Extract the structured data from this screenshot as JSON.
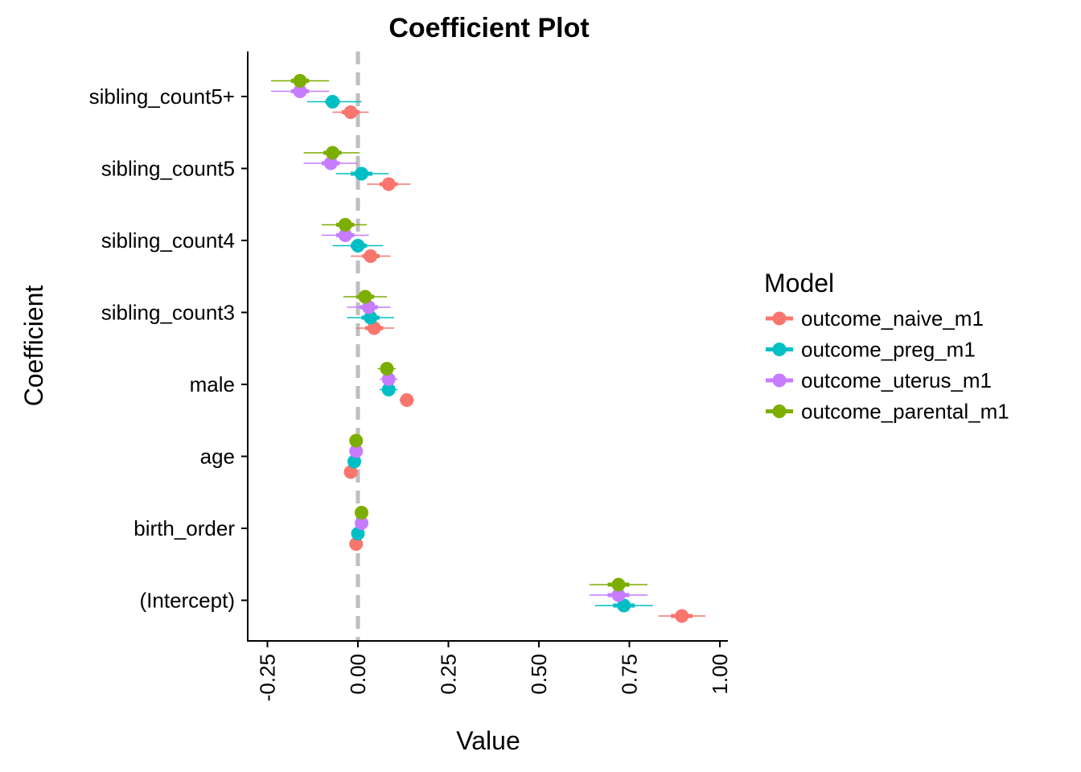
{
  "chart_data": {
    "type": "scatter",
    "title": "Coefficient Plot",
    "xlabel": "Value",
    "ylabel": "Coefficient",
    "xlim": [
      -0.3,
      1.02
    ],
    "xticks": [
      -0.25,
      0.0,
      0.25,
      0.5,
      0.75,
      1.0
    ],
    "xtick_labels": [
      "-0.25",
      "0.00",
      "0.25",
      "0.50",
      "0.75",
      "1.00"
    ],
    "reference_line": 0,
    "grid": false,
    "categories": [
      "sibling_count5+",
      "sibling_count5",
      "sibling_count4",
      "sibling_count3",
      "male",
      "age",
      "birth_order",
      "(Intercept)"
    ],
    "legend": {
      "title": "Model",
      "placement": "right"
    },
    "series": [
      {
        "name": "outcome_naive_m1",
        "color": "#F8766D",
        "points": [
          {
            "cat": "sibling_count5+",
            "est": -0.02,
            "inner": [
              -0.045,
              0.005
            ],
            "outer": [
              -0.07,
              0.03
            ]
          },
          {
            "cat": "sibling_count5",
            "est": 0.085,
            "inner": [
              0.06,
              0.11
            ],
            "outer": [
              0.025,
              0.145
            ]
          },
          {
            "cat": "sibling_count4",
            "est": 0.035,
            "inner": [
              0.012,
              0.06
            ],
            "outer": [
              -0.02,
              0.09
            ]
          },
          {
            "cat": "sibling_count3",
            "est": 0.045,
            "inner": [
              0.02,
              0.07
            ],
            "outer": [
              -0.005,
              0.1
            ]
          },
          {
            "cat": "male",
            "est": 0.135,
            "inner": [
              0.125,
              0.145
            ],
            "outer": [
              0.115,
              0.155
            ]
          },
          {
            "cat": "age",
            "est": -0.02,
            "inner": [
              -0.026,
              -0.014
            ],
            "outer": [
              -0.03,
              -0.01
            ]
          },
          {
            "cat": "birth_order",
            "est": -0.005,
            "inner": [
              -0.01,
              0.0
            ],
            "outer": [
              -0.015,
              0.005
            ]
          },
          {
            "cat": "(Intercept)",
            "est": 0.895,
            "inner": [
              0.865,
              0.925
            ],
            "outer": [
              0.83,
              0.96
            ]
          }
        ]
      },
      {
        "name": "outcome_preg_m1",
        "color": "#00BFC4",
        "points": [
          {
            "cat": "sibling_count5+",
            "est": -0.07,
            "inner": [
              -0.09,
              -0.05
            ],
            "outer": [
              -0.14,
              0.01
            ]
          },
          {
            "cat": "sibling_count5",
            "est": 0.01,
            "inner": [
              -0.02,
              0.04
            ],
            "outer": [
              -0.06,
              0.085
            ]
          },
          {
            "cat": "sibling_count4",
            "est": 0.0,
            "inner": [
              -0.02,
              0.025
            ],
            "outer": [
              -0.07,
              0.07
            ]
          },
          {
            "cat": "sibling_count3",
            "est": 0.035,
            "inner": [
              0.01,
              0.06
            ],
            "outer": [
              -0.03,
              0.1
            ]
          },
          {
            "cat": "male",
            "est": 0.085,
            "inner": [
              0.075,
              0.095
            ],
            "outer": [
              0.06,
              0.11
            ]
          },
          {
            "cat": "age",
            "est": -0.01,
            "inner": [
              -0.015,
              -0.005
            ],
            "outer": [
              -0.02,
              0.0
            ]
          },
          {
            "cat": "birth_order",
            "est": 0.0,
            "inner": [
              -0.005,
              0.005
            ],
            "outer": [
              -0.01,
              0.01
            ]
          },
          {
            "cat": "(Intercept)",
            "est": 0.735,
            "inner": [
              0.705,
              0.765
            ],
            "outer": [
              0.655,
              0.815
            ]
          }
        ]
      },
      {
        "name": "outcome_uterus_m1",
        "color": "#C77CFF",
        "points": [
          {
            "cat": "sibling_count5+",
            "est": -0.16,
            "inner": [
              -0.185,
              -0.135
            ],
            "outer": [
              -0.24,
              -0.08
            ]
          },
          {
            "cat": "sibling_count5",
            "est": -0.075,
            "inner": [
              -0.1,
              -0.05
            ],
            "outer": [
              -0.15,
              0.0
            ]
          },
          {
            "cat": "sibling_count4",
            "est": -0.035,
            "inner": [
              -0.06,
              -0.01
            ],
            "outer": [
              -0.1,
              0.03
            ]
          },
          {
            "cat": "sibling_count3",
            "est": 0.03,
            "inner": [
              0.005,
              0.055
            ],
            "outer": [
              -0.03,
              0.09
            ]
          },
          {
            "cat": "male",
            "est": 0.085,
            "inner": [
              0.075,
              0.095
            ],
            "outer": [
              0.06,
              0.11
            ]
          },
          {
            "cat": "age",
            "est": -0.005,
            "inner": [
              -0.01,
              0.0
            ],
            "outer": [
              -0.015,
              0.005
            ]
          },
          {
            "cat": "birth_order",
            "est": 0.01,
            "inner": [
              0.005,
              0.015
            ],
            "outer": [
              0.0,
              0.02
            ]
          },
          {
            "cat": "(Intercept)",
            "est": 0.72,
            "inner": [
              0.69,
              0.75
            ],
            "outer": [
              0.64,
              0.8
            ]
          }
        ]
      },
      {
        "name": "outcome_parental_m1",
        "color": "#7CAE00",
        "points": [
          {
            "cat": "sibling_count5+",
            "est": -0.16,
            "inner": [
              -0.185,
              -0.135
            ],
            "outer": [
              -0.24,
              -0.08
            ]
          },
          {
            "cat": "sibling_count5",
            "est": -0.07,
            "inner": [
              -0.095,
              -0.045
            ],
            "outer": [
              -0.15,
              0.005
            ]
          },
          {
            "cat": "sibling_count4",
            "est": -0.035,
            "inner": [
              -0.06,
              -0.01
            ],
            "outer": [
              -0.1,
              0.025
            ]
          },
          {
            "cat": "sibling_count3",
            "est": 0.02,
            "inner": [
              -0.005,
              0.045
            ],
            "outer": [
              -0.04,
              0.08
            ]
          },
          {
            "cat": "male",
            "est": 0.08,
            "inner": [
              0.07,
              0.09
            ],
            "outer": [
              0.055,
              0.105
            ]
          },
          {
            "cat": "age",
            "est": -0.005,
            "inner": [
              -0.01,
              0.0
            ],
            "outer": [
              -0.015,
              0.005
            ]
          },
          {
            "cat": "birth_order",
            "est": 0.01,
            "inner": [
              0.005,
              0.015
            ],
            "outer": [
              0.0,
              0.02
            ]
          },
          {
            "cat": "(Intercept)",
            "est": 0.72,
            "inner": [
              0.69,
              0.75
            ],
            "outer": [
              0.64,
              0.8
            ]
          }
        ]
      }
    ]
  }
}
